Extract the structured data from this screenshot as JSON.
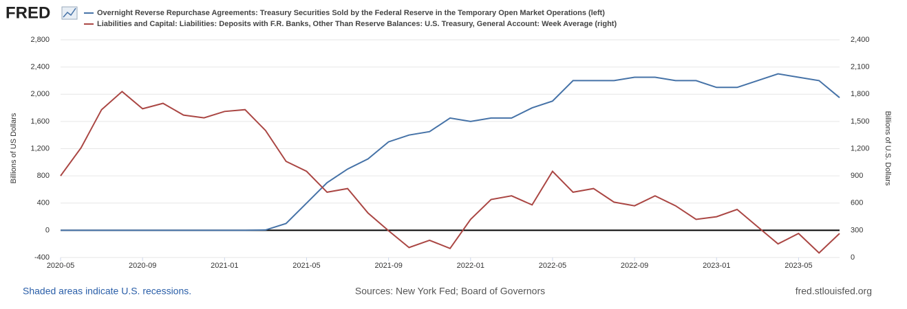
{
  "brand": "FRED",
  "chart_data": {
    "type": "line",
    "x": [
      "2020-05",
      "2020-06",
      "2020-07",
      "2020-08",
      "2020-09",
      "2020-10",
      "2020-11",
      "2020-12",
      "2021-01",
      "2021-02",
      "2021-03",
      "2021-04",
      "2021-05",
      "2021-06",
      "2021-07",
      "2021-08",
      "2021-09",
      "2021-10",
      "2021-11",
      "2021-12",
      "2022-01",
      "2022-02",
      "2022-03",
      "2022-04",
      "2022-05",
      "2022-06",
      "2022-07",
      "2022-08",
      "2022-09",
      "2022-10",
      "2022-11",
      "2022-12",
      "2023-01",
      "2023-02",
      "2023-03",
      "2023-04",
      "2023-05",
      "2023-06",
      "2023-07"
    ],
    "xlim": [
      "2020-05",
      "2023-07"
    ],
    "xticks": [
      "2020-05",
      "2020-09",
      "2021-01",
      "2021-05",
      "2021-09",
      "2022-01",
      "2022-05",
      "2022-09",
      "2023-01",
      "2023-05"
    ],
    "ylim": [
      -400,
      2800
    ],
    "yticks": [
      {
        "value": -400,
        "label": "-400"
      },
      0,
      400,
      800,
      {
        "value": 1200,
        "label": "1,200"
      },
      {
        "value": 1600,
        "label": "1,600"
      },
      {
        "value": 2000,
        "label": "2,000"
      },
      {
        "value": 2400,
        "label": "2,400"
      },
      {
        "value": 2800,
        "label": "2,800"
      }
    ],
    "y2lim": [
      0,
      2400
    ],
    "y2ticks": [
      0,
      300,
      600,
      900,
      {
        "value": 1200,
        "label": "1,200"
      },
      {
        "value": 1500,
        "label": "1,500"
      },
      {
        "value": 1800,
        "label": "1,800"
      },
      {
        "value": 2100,
        "label": "2,100"
      },
      {
        "value": 2400,
        "label": "2,400"
      }
    ],
    "ylabel": "Billions of US Dollars",
    "y2label": "Billions of U.S. Dollars",
    "grid": true,
    "series": [
      {
        "name": "Overnight Reverse Repurchase Agreements: Treasury Securities Sold by the Federal Reserve in the Temporary Open Market Operations (left)",
        "color": "#4572a7",
        "values": [
          0,
          0,
          0,
          0,
          0,
          0,
          0,
          0,
          0,
          0,
          5,
          100,
          400,
          700,
          900,
          1050,
          1300,
          1400,
          1450,
          1650,
          1600,
          1650,
          1650,
          1800,
          1900,
          2200,
          2200,
          2200,
          2250,
          2250,
          2200,
          2200,
          2100,
          2100,
          2200,
          2300,
          2250,
          2200,
          1950
        ]
      },
      {
        "name": "Liabilities and Capital: Liabilities: Deposits with F.R. Banks, Other Than Reserve Balances: U.S. Treasury, General Account: Week Average (right)",
        "color": "#aa4643",
        "axis": "y2",
        "values": [
          900,
          1210,
          1630,
          1830,
          1640,
          1700,
          1570,
          1540,
          1610,
          1630,
          1400,
          1060,
          950,
          720,
          760,
          490,
          295,
          110,
          190,
          100,
          420,
          640,
          680,
          580,
          950,
          720,
          760,
          610,
          570,
          680,
          570,
          420,
          450,
          530,
          340,
          150,
          265,
          50,
          265
        ]
      }
    ]
  },
  "footer": {
    "recessions": "Shaded areas indicate U.S. recessions.",
    "sources": "Sources: New York Fed; Board of Governors",
    "site": "fred.stlouisfed.org"
  }
}
